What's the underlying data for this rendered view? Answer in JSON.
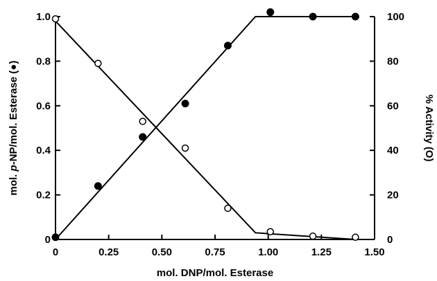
{
  "chart_data": {
    "type": "scatter",
    "xlabel": "mol. DNP/mol. Esterase",
    "ylabel_left": {
      "pre": "mol. ",
      "italic": "p",
      "post": "-NP/mol. Esterase (●)"
    },
    "ylabel_right": "% Activity (O)",
    "xlim": [
      0,
      1.5
    ],
    "ylim_left": [
      0,
      1.0
    ],
    "ylim_right": [
      0,
      100
    ],
    "x_ticks": [
      "0",
      "0.25",
      "0.50",
      "0.75",
      "1.00",
      "1.25",
      "1.50"
    ],
    "y_ticks_left": [
      "0",
      "0.2",
      "0.4",
      "0.6",
      "0.8",
      "1.0"
    ],
    "y_ticks_right": [
      "0",
      "20",
      "40",
      "60",
      "80",
      "100"
    ],
    "grid": false,
    "series": [
      {
        "marker": "filled-circle",
        "axis": "left",
        "x": [
          0.0,
          0.2,
          0.41,
          0.61,
          0.81,
          1.01,
          1.21,
          1.41
        ],
        "y": [
          0.01,
          0.24,
          0.46,
          0.61,
          0.87,
          1.02,
          1.0,
          1.0
        ]
      },
      {
        "marker": "open-circle",
        "axis": "right",
        "x": [
          0.0,
          0.2,
          0.41,
          0.61,
          0.81,
          1.01,
          1.21,
          1.41
        ],
        "y": [
          99,
          79,
          53,
          41,
          14,
          3.5,
          1.5,
          1.0
        ]
      }
    ],
    "fit_lines": [
      {
        "axis": "left",
        "x": [
          0.0,
          0.94,
          1.41
        ],
        "y": [
          0.0,
          1.0,
          1.0
        ]
      },
      {
        "axis": "right",
        "x": [
          0.0,
          0.94,
          1.41
        ],
        "y": [
          98,
          3,
          0
        ]
      }
    ]
  }
}
